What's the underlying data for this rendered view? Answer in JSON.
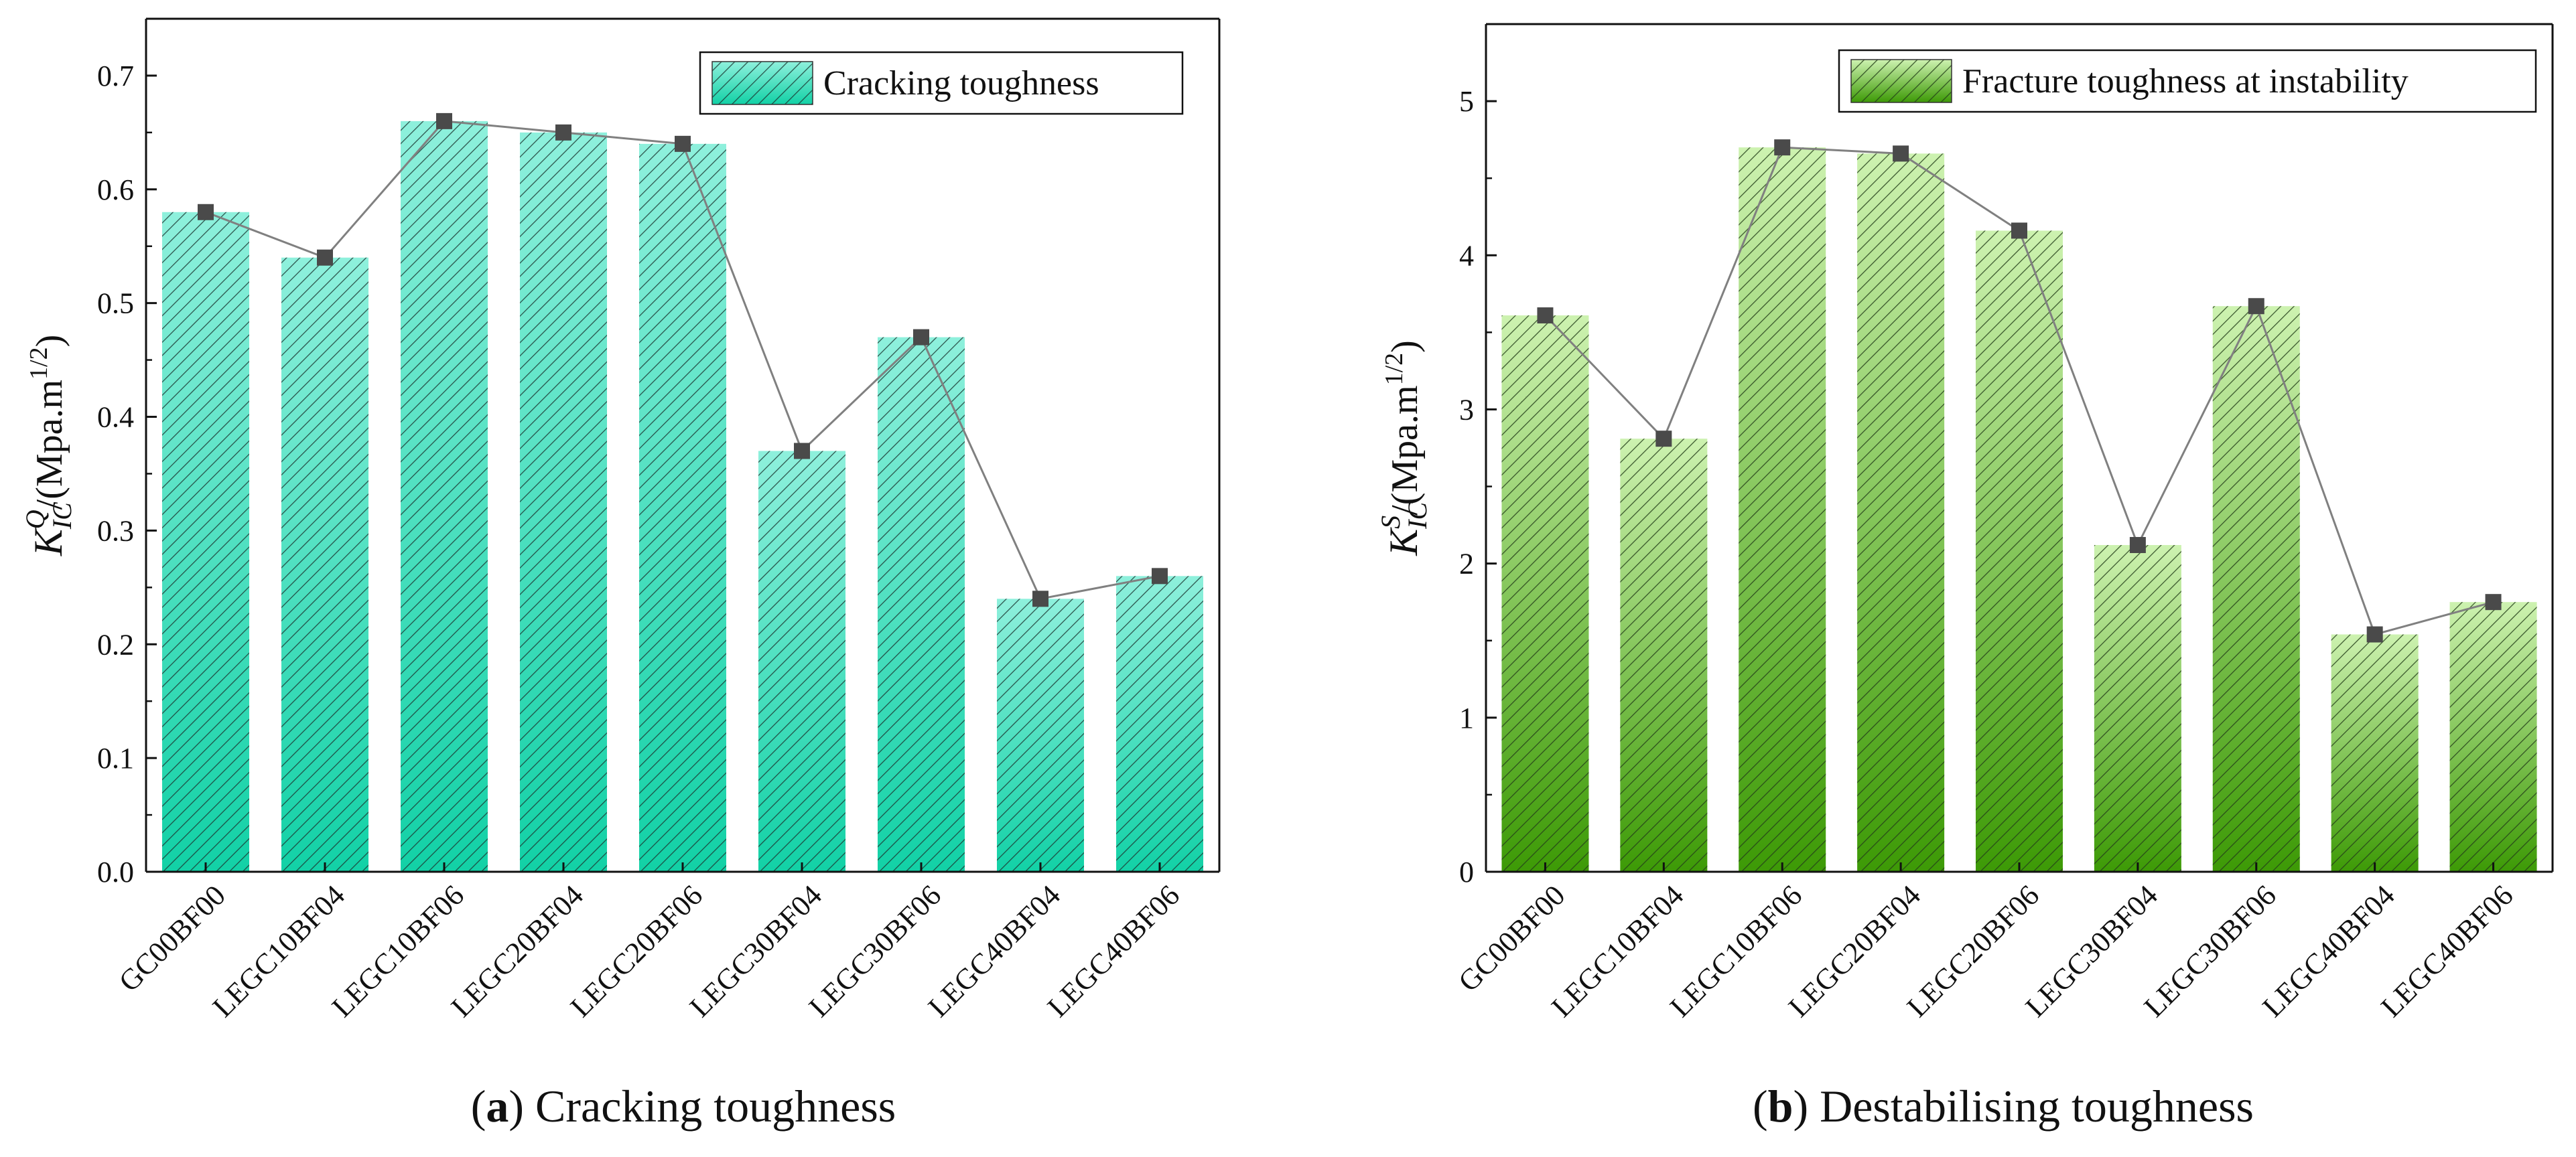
{
  "chart_data": [
    {
      "type": "bar",
      "panel_label": "a",
      "caption": "Cracking toughness",
      "title": "",
      "xlabel": "",
      "ylabel_symbol": "K",
      "ylabel_subscript": "IC",
      "ylabel_superscript": "Q",
      "ylabel_unit": "/(Mpa.m",
      "ylabel_unit_exp": "1/2",
      "ylabel_unit_close": ")",
      "ylim": [
        0,
        0.75
      ],
      "yticks": [
        "0.0",
        "0.1",
        "0.2",
        "0.3",
        "0.4",
        "0.5",
        "0.6",
        "0.7"
      ],
      "categories": [
        "GC00BF00",
        "LEGC10BF04",
        "LEGC10BF06",
        "LEGC20BF04",
        "LEGC20BF06",
        "LEGC30BF04",
        "LEGC30BF06",
        "LEGC40BF04",
        "LEGC40BF06"
      ],
      "series": [
        {
          "name": "Cracking toughness",
          "values": [
            0.58,
            0.54,
            0.66,
            0.65,
            0.64,
            0.37,
            0.47,
            0.24,
            0.26
          ]
        }
      ],
      "overlay_line": true,
      "legend_position": "top-right",
      "grid": false,
      "colors": {
        "bar_top": "#8ef0dc",
        "bar_bottom": "#12d1a6",
        "hatch": "#1c3a34",
        "line": "#808080",
        "marker": "#4a4a4a"
      }
    },
    {
      "type": "bar",
      "panel_label": "b",
      "caption": "Destabilising toughness",
      "title": "",
      "xlabel": "",
      "ylabel_symbol": "K",
      "ylabel_subscript": "IC",
      "ylabel_superscript": "S",
      "ylabel_unit": "/(Mpa.m",
      "ylabel_unit_exp": "1/2",
      "ylabel_unit_close": ")",
      "ylim": [
        0,
        5.5
      ],
      "yticks": [
        "0",
        "1",
        "2",
        "3",
        "4",
        "5"
      ],
      "categories": [
        "GC00BF00",
        "LEGC10BF04",
        "LEGC10BF06",
        "LEGC20BF04",
        "LEGC20BF06",
        "LEGC30BF04",
        "LEGC30BF06",
        "LEGC40BF04",
        "LEGC40BF06"
      ],
      "series": [
        {
          "name": "Fracture toughness at instability",
          "values": [
            3.61,
            2.81,
            4.7,
            4.66,
            4.16,
            2.12,
            3.67,
            1.54,
            1.75
          ]
        }
      ],
      "overlay_line": true,
      "legend_position": "top-right",
      "grid": false,
      "colors": {
        "bar_top": "#cdf2b0",
        "bar_bottom": "#3d9a06",
        "hatch": "#24401a",
        "line": "#808080",
        "marker": "#4a4a4a"
      }
    }
  ]
}
